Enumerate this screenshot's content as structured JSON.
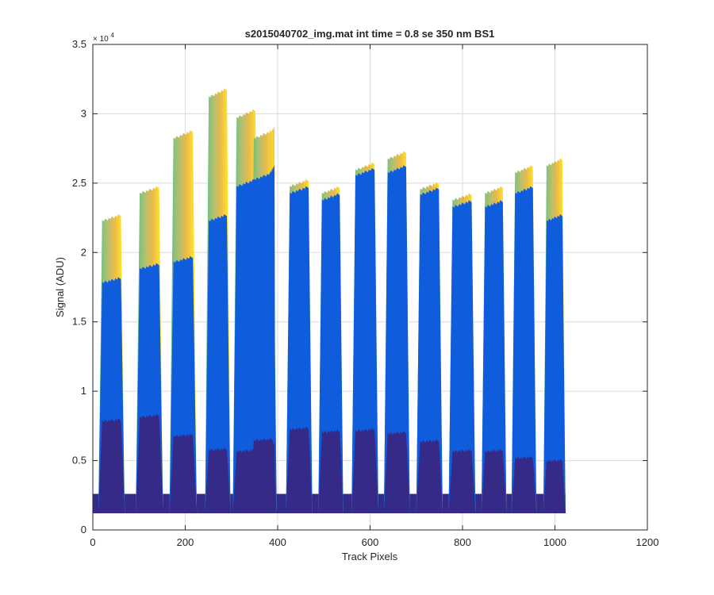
{
  "chart_data": {
    "type": "area",
    "title": "s2015040702_img.mat int time = 0.8 se  350 nm BS1",
    "xlabel": "Track Pixels",
    "ylabel": "Signal (ADU)",
    "y_exponent_label": "× 10",
    "y_exponent_power": "4",
    "xlim": [
      0,
      1200
    ],
    "ylim": [
      0,
      35000
    ],
    "x_ticks": [
      0,
      200,
      400,
      600,
      800,
      1000,
      1200
    ],
    "x_tick_labels": [
      "0",
      "200",
      "400",
      "600",
      "800",
      "1000",
      "1200"
    ],
    "y_ticks": [
      0,
      5000,
      10000,
      15000,
      20000,
      25000,
      30000,
      35000
    ],
    "y_tick_labels": [
      "0",
      "0.5",
      "1",
      "1.5",
      "2",
      "2.5",
      "3",
      "3.5"
    ],
    "grid": true,
    "baseline": 1200,
    "data_end_x": 1023,
    "colors": {
      "dark": "#352a87",
      "mid": "#0f5cdd",
      "top_gradient": [
        "#38b99e",
        "#8cbe6e",
        "#bbbb63",
        "#e7b63f",
        "#f9d32a",
        "#f9fb0e"
      ]
    },
    "peaks": [
      {
        "x_start": 12,
        "x_end": 69,
        "top": 22500,
        "mid": 18000,
        "dark": 7900
      },
      {
        "x_start": 93,
        "x_end": 152,
        "top": 24500,
        "mid": 19000,
        "dark": 8200
      },
      {
        "x_start": 166,
        "x_end": 225,
        "top": 28500,
        "mid": 19500,
        "dark": 6800
      },
      {
        "x_start": 243,
        "x_end": 298,
        "top": 31500,
        "mid": 22500,
        "dark": 5800
      },
      {
        "x_start": 303,
        "x_end": 360,
        "top": 30000,
        "mid": 25000,
        "dark": 5700
      },
      {
        "x_start": 380,
        "x_end": 379,
        "top": 0,
        "mid": 0,
        "dark": 0
      },
      {
        "x_start": 382,
        "x_end": 395,
        "top": 28800,
        "mid": 26000,
        "dark": 6200
      },
      {
        "x_start": 340,
        "x_end": 398,
        "top": 28500,
        "mid": 25500,
        "dark": 6500
      },
      {
        "x_start": 418,
        "x_end": 475,
        "top": 25000,
        "mid": 24500,
        "dark": 7300
      },
      {
        "x_start": 488,
        "x_end": 542,
        "top": 24500,
        "mid": 24000,
        "dark": 7100
      },
      {
        "x_start": 560,
        "x_end": 618,
        "top": 26200,
        "mid": 25800,
        "dark": 7200
      },
      {
        "x_start": 630,
        "x_end": 686,
        "top": 27000,
        "mid": 26000,
        "dark": 7000
      },
      {
        "x_start": 700,
        "x_end": 757,
        "top": 24800,
        "mid": 24400,
        "dark": 6400
      },
      {
        "x_start": 770,
        "x_end": 828,
        "top": 24000,
        "mid": 23500,
        "dark": 5700
      },
      {
        "x_start": 841,
        "x_end": 895,
        "top": 24500,
        "mid": 23500,
        "dark": 5700
      },
      {
        "x_start": 906,
        "x_end": 960,
        "top": 26000,
        "mid": 24500,
        "dark": 5200
      },
      {
        "x_start": 975,
        "x_end": 1023,
        "top": 26500,
        "mid": 22500,
        "dark": 5000
      }
    ]
  }
}
